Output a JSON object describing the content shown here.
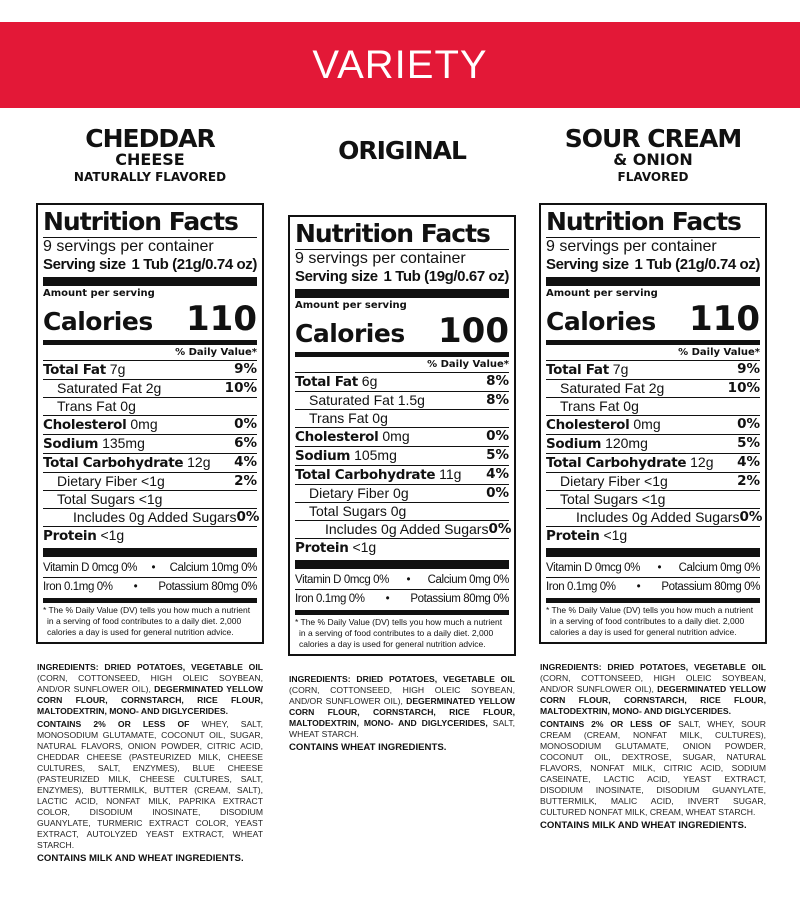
{
  "banner": "VARIETY",
  "colors": {
    "banner": "#e31837",
    "text": "#111111"
  },
  "labels": {
    "title": "Nutrition Facts",
    "amount_per_serving": "Amount per serving",
    "calories": "Calories",
    "daily_value": "% Daily Value*",
    "serving_size": "Serving size",
    "footnote": "* The % Daily Value (DV) tells you how much a nutrient in a serving of food contributes to a daily diet. 2,000 calories a day is used for general nutrition advice."
  },
  "products": [
    {
      "name": "CHEDDAR",
      "name2": "CHEESE",
      "subtitle": "NATURALLY FLAVORED",
      "servings": "9 servings per container",
      "serving_size": "1 Tub (21g/0.74 oz)",
      "calories": "110",
      "rows": [
        [
          "Total Fat",
          "7g",
          "9%"
        ],
        [
          "Saturated Fat",
          "2g",
          "10%"
        ],
        [
          "Trans Fat",
          "0g",
          ""
        ],
        [
          "Cholesterol",
          "0mg",
          "0%"
        ],
        [
          "Sodium",
          "135mg",
          "6%"
        ],
        [
          "Total Carbohydrate",
          "12g",
          "4%"
        ],
        [
          "Dietary Fiber",
          "<1g",
          "2%"
        ],
        [
          "Total Sugars",
          "<1g",
          ""
        ],
        [
          "Includes 0g Added Sugars",
          "",
          "0%"
        ],
        [
          "Protein",
          "<1g",
          ""
        ]
      ],
      "vitamins": [
        [
          "Vitamin D 0mcg 0%",
          "Calcium 10mg 0%"
        ],
        [
          "Iron 0.1mg 0%",
          "Potassium 80mg 0%"
        ]
      ],
      "ingredients_bold": "INGREDIENTS: DRIED POTATOES, VEGETABLE OIL",
      "ingredients_1": "(CORN, COTTONSEED, HIGH OLEIC SOYBEAN, AND/OR SUNFLOWER OIL),",
      "ingredients_bold2": "DEGERMINATED YELLOW CORN FLOUR, CORNSTARCH, RICE FLOUR, MALTODEXTRIN, MONO- AND DIGLYCERIDES.",
      "ingredients_2": "",
      "contains_lead": "CONTAINS 2% OR LESS OF",
      "contains_list": "WHEY, SALT, MONOSODIUM GLUTAMATE, COCONUT OIL, SUGAR, NATURAL FLAVORS, ONION POWDER, CITRIC ACID, CHEDDAR CHEESE (PASTEURIZED MILK, CHEESE CULTURES, SALT, ENZYMES), BLUE CHEESE (PASTEURIZED MILK, CHEESE CULTURES, SALT, ENZYMES), BUTTERMILK, BUTTER (CREAM, SALT), LACTIC ACID, NONFAT MILK, PAPRIKA EXTRACT COLOR, DISODIUM INOSINATE, DISODIUM GUANYLATE, TURMERIC EXTRACT COLOR, YEAST EXTRACT, AUTOLYZED YEAST EXTRACT, WHEAT STARCH.",
      "allergen": "CONTAINS MILK AND WHEAT INGREDIENTS."
    },
    {
      "name": "ORIGINAL",
      "name2": "",
      "subtitle": "",
      "servings": "9 servings per container",
      "serving_size": "1 Tub (19g/0.67 oz)",
      "calories": "100",
      "rows": [
        [
          "Total Fat",
          "6g",
          "8%"
        ],
        [
          "Saturated Fat",
          "1.5g",
          "8%"
        ],
        [
          "Trans Fat",
          "0g",
          ""
        ],
        [
          "Cholesterol",
          "0mg",
          "0%"
        ],
        [
          "Sodium",
          "105mg",
          "5%"
        ],
        [
          "Total Carbohydrate",
          "11g",
          "4%"
        ],
        [
          "Dietary Fiber",
          "0g",
          "0%"
        ],
        [
          "Total Sugars",
          "0g",
          ""
        ],
        [
          "Includes 0g Added Sugars",
          "",
          "0%"
        ],
        [
          "Protein",
          "<1g",
          ""
        ]
      ],
      "vitamins": [
        [
          "Vitamin D 0mcg 0%",
          "Calcium 0mg 0%"
        ],
        [
          "Iron 0.1mg 0%",
          "Potassium 80mg 0%"
        ]
      ],
      "ingredients_bold": "INGREDIENTS: DRIED POTATOES, VEGETABLE OIL",
      "ingredients_1": "(CORN, COTTONSEED, HIGH OLEIC SOYBEAN, AND/OR SUNFLOWER OIL),",
      "ingredients_bold2": "DEGERMINATED YELLOW CORN FLOUR, CORNSTARCH, RICE FLOUR, MALTODEXTRIN, MONO- AND DIGLYCERIDES,",
      "ingredients_2": "SALT, WHEAT STARCH.",
      "contains_lead": "",
      "contains_list": "",
      "allergen": "CONTAINS WHEAT INGREDIENTS."
    },
    {
      "name": "SOUR CREAM",
      "name2": "& ONION",
      "subtitle": "FLAVORED",
      "servings": "9 servings per container",
      "serving_size": "1 Tub (21g/0.74 oz)",
      "calories": "110",
      "rows": [
        [
          "Total Fat",
          "7g",
          "9%"
        ],
        [
          "Saturated Fat",
          "2g",
          "10%"
        ],
        [
          "Trans Fat",
          "0g",
          ""
        ],
        [
          "Cholesterol",
          "0mg",
          "0%"
        ],
        [
          "Sodium",
          "120mg",
          "5%"
        ],
        [
          "Total Carbohydrate",
          "12g",
          "4%"
        ],
        [
          "Dietary Fiber",
          "<1g",
          "2%"
        ],
        [
          "Total Sugars",
          "<1g",
          ""
        ],
        [
          "Includes 0g Added Sugars",
          "",
          "0%"
        ],
        [
          "Protein",
          "<1g",
          ""
        ]
      ],
      "vitamins": [
        [
          "Vitamin D 0mcg 0%",
          "Calcium 0mg 0%"
        ],
        [
          "Iron 0.1mg 0%",
          "Potassium 80mg 0%"
        ]
      ],
      "ingredients_bold": "INGREDIENTS: DRIED POTATOES, VEGETABLE OIL",
      "ingredients_1": "(CORN, COTTONSEED, HIGH OLEIC SOYBEAN, AND/OR SUNFLOWER OIL),",
      "ingredients_bold2": "DEGERMINATED YELLOW CORN FLOUR, CORNSTARCH, RICE FLOUR, MALTODEXTRIN, MONO- AND DIGLYCERIDES.",
      "ingredients_2": "",
      "contains_lead": "CONTAINS 2% OR LESS OF",
      "contains_list": "SALT, WHEY, SOUR CREAM (CREAM, NONFAT MILK, CULTURES), MONOSODIUM GLUTAMATE, ONION POWDER, COCONUT OIL, DEXTROSE, SUGAR, NATURAL FLAVORS, NONFAT MILK, CITRIC ACID, SODIUM CASEINATE, LACTIC ACID, YEAST EXTRACT, DISODIUM INOSINATE, DISODIUM GUANYLATE, BUTTERMILK, MALIC ACID, INVERT SUGAR, CULTURED NONFAT MILK, CREAM, WHEAT STARCH.",
      "allergen": "CONTAINS MILK AND WHEAT INGREDIENTS."
    }
  ]
}
